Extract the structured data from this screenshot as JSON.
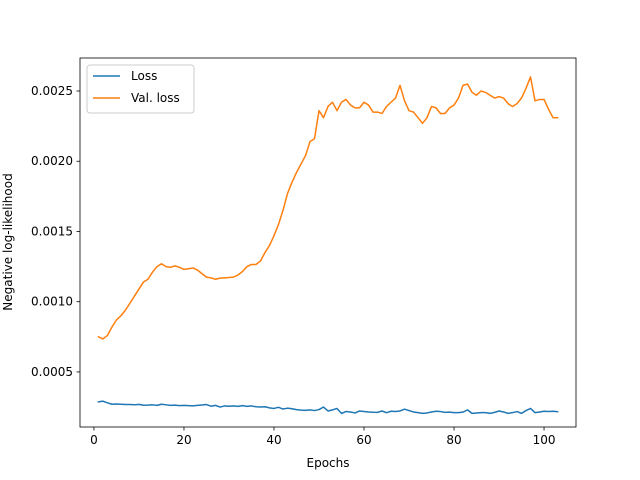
{
  "chart_data": {
    "type": "line",
    "xlabel": "Epochs",
    "ylabel": "Negative log-likelihood",
    "xlim": [
      -3.1,
      107.1
    ],
    "ylim": [
      0.000108,
      0.002735
    ],
    "xticks": [
      0,
      20,
      40,
      60,
      80,
      100
    ],
    "xtick_labels": [
      "0",
      "20",
      "40",
      "60",
      "80",
      "100"
    ],
    "yticks": [
      0.0005,
      0.001,
      0.0015,
      0.002,
      0.0025
    ],
    "ytick_labels": [
      "0.0005",
      "0.0010",
      "0.0015",
      "0.0020",
      "0.0025"
    ],
    "grid": false,
    "legend_position": "upper-left",
    "series": [
      {
        "name": "Loss",
        "color": "#1f77b4",
        "x": [
          1,
          2,
          3,
          4,
          5,
          6,
          7,
          8,
          9,
          10,
          11,
          12,
          13,
          14,
          15,
          16,
          17,
          18,
          19,
          20,
          21,
          22,
          23,
          24,
          25,
          26,
          27,
          28,
          29,
          30,
          31,
          32,
          33,
          34,
          35,
          36,
          37,
          38,
          39,
          40,
          41,
          42,
          43,
          44,
          45,
          46,
          47,
          48,
          49,
          50,
          51,
          52,
          53,
          54,
          55,
          56,
          57,
          58,
          59,
          60,
          61,
          62,
          63,
          64,
          65,
          66,
          67,
          68,
          69,
          70,
          71,
          72,
          73,
          74,
          75,
          76,
          77,
          78,
          79,
          80,
          81,
          82,
          83,
          84,
          85,
          86,
          87,
          88,
          89,
          90,
          91,
          92,
          93,
          94,
          95,
          96,
          97,
          98,
          99,
          100,
          101,
          102,
          103
        ],
        "y": [
          0.000287,
          0.000292,
          0.00028,
          0.00027,
          0.000272,
          0.00027,
          0.000268,
          0.000268,
          0.000266,
          0.000269,
          0.000263,
          0.000264,
          0.000266,
          0.000262,
          0.00027,
          0.000266,
          0.000262,
          0.000264,
          0.00026,
          0.000262,
          0.00026,
          0.000258,
          0.000262,
          0.000265,
          0.000268,
          0.000256,
          0.000262,
          0.00025,
          0.000258,
          0.000256,
          0.000258,
          0.000255,
          0.00026,
          0.000255,
          0.000258,
          0.000252,
          0.00025,
          0.000252,
          0.000244,
          0.00024,
          0.000248,
          0.000236,
          0.000242,
          0.000238,
          0.000232,
          0.000228,
          0.000226,
          0.00023,
          0.000225,
          0.000232,
          0.00025,
          0.000222,
          0.00023,
          0.00024,
          0.000205,
          0.000218,
          0.000215,
          0.000208,
          0.000222,
          0.000218,
          0.000215,
          0.000213,
          0.000212,
          0.000222,
          0.00021,
          0.00022,
          0.000218,
          0.000222,
          0.000235,
          0.000225,
          0.000215,
          0.00021,
          0.000205,
          0.000208,
          0.000215,
          0.00022,
          0.000218,
          0.000212,
          0.000214,
          0.00021,
          0.00021,
          0.000214,
          0.00023,
          0.000205,
          0.000208,
          0.00021,
          0.00021,
          0.000205,
          0.000212,
          0.000222,
          0.000215,
          0.000205,
          0.00021,
          0.000218,
          0.000205,
          0.000225,
          0.00024,
          0.00021,
          0.000215,
          0.00022,
          0.000218,
          0.00022,
          0.000217
        ]
      },
      {
        "name": "Val. loss",
        "color": "#ff7f0e",
        "x": [
          1,
          2,
          3,
          4,
          5,
          6,
          7,
          8,
          9,
          10,
          11,
          12,
          13,
          14,
          15,
          16,
          17,
          18,
          19,
          20,
          21,
          22,
          23,
          24,
          25,
          26,
          27,
          28,
          29,
          30,
          31,
          32,
          33,
          34,
          35,
          36,
          37,
          38,
          39,
          40,
          41,
          42,
          43,
          44,
          45,
          46,
          47,
          48,
          49,
          50,
          51,
          52,
          53,
          54,
          55,
          56,
          57,
          58,
          59,
          60,
          61,
          62,
          63,
          64,
          65,
          66,
          67,
          68,
          69,
          70,
          71,
          72,
          73,
          74,
          75,
          76,
          77,
          78,
          79,
          80,
          81,
          82,
          83,
          84,
          85,
          86,
          87,
          88,
          89,
          90,
          91,
          92,
          93,
          94,
          95,
          96,
          97,
          98,
          99,
          100,
          101,
          102,
          103
        ],
        "y": [
          0.00075,
          0.000735,
          0.00076,
          0.00082,
          0.00087,
          0.0009,
          0.00094,
          0.00099,
          0.00104,
          0.00109,
          0.00114,
          0.00116,
          0.00121,
          0.00125,
          0.00127,
          0.00125,
          0.001245,
          0.001255,
          0.001245,
          0.00123,
          0.001235,
          0.00124,
          0.001225,
          0.0012,
          0.001175,
          0.00117,
          0.00116,
          0.001168,
          0.00117,
          0.001172,
          0.001175,
          0.00119,
          0.001215,
          0.00125,
          0.001265,
          0.001265,
          0.00129,
          0.00135,
          0.0014,
          0.00147,
          0.00155,
          0.00165,
          0.00177,
          0.00185,
          0.00192,
          0.00198,
          0.00204,
          0.00214,
          0.00216,
          0.00236,
          0.00231,
          0.00239,
          0.00242,
          0.00236,
          0.00242,
          0.00244,
          0.0024,
          0.00238,
          0.00238,
          0.00242,
          0.0024,
          0.00235,
          0.00235,
          0.00234,
          0.00239,
          0.00242,
          0.00245,
          0.00254,
          0.00243,
          0.00236,
          0.00235,
          0.00231,
          0.00227,
          0.00231,
          0.00239,
          0.00238,
          0.00234,
          0.00234,
          0.00238,
          0.0024,
          0.00245,
          0.00254,
          0.00255,
          0.00249,
          0.00247,
          0.0025,
          0.00249,
          0.00247,
          0.00245,
          0.00246,
          0.00245,
          0.00241,
          0.00239,
          0.00241,
          0.00245,
          0.00252,
          0.0026,
          0.00243,
          0.00244,
          0.00244,
          0.00237,
          0.00231,
          0.00231
        ]
      }
    ]
  }
}
